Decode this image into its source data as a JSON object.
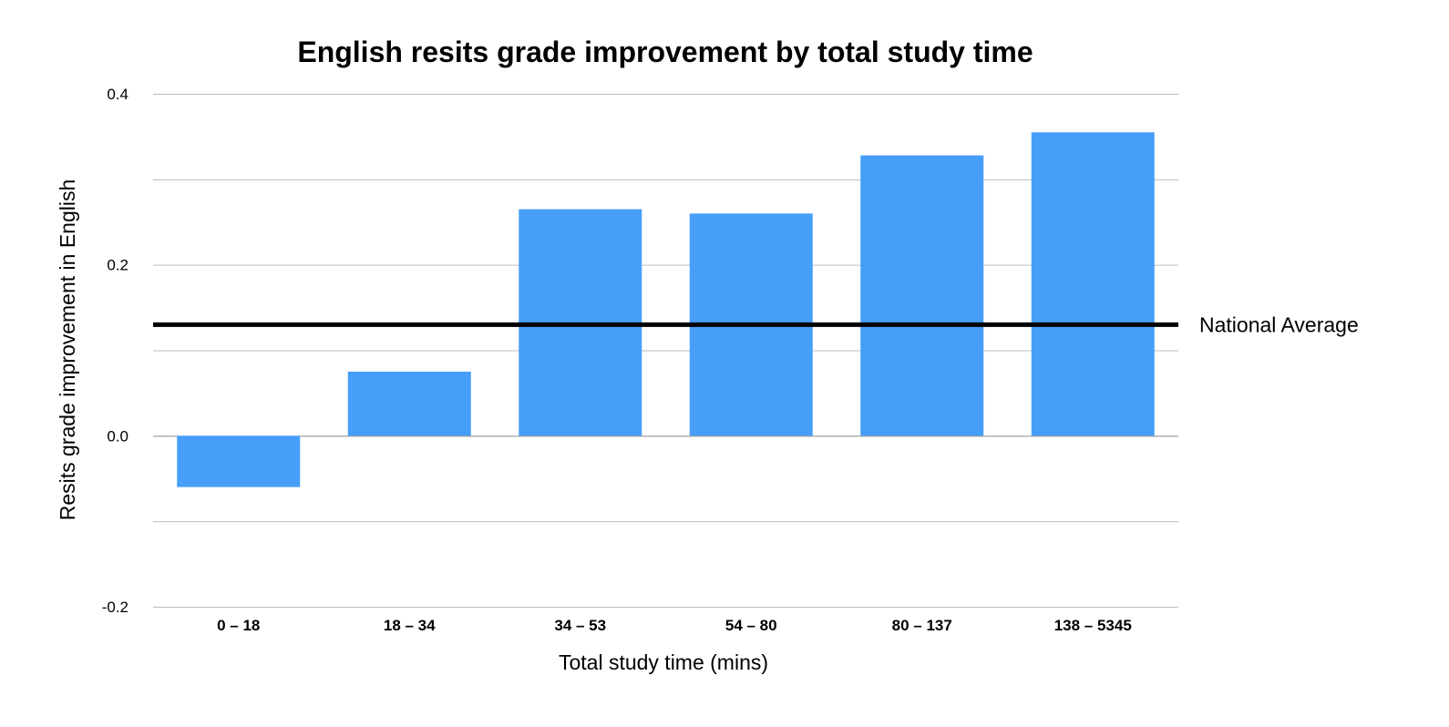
{
  "chart_data": {
    "type": "bar",
    "title": "English resits grade improvement by total study time",
    "xlabel": "Total study time (mins)",
    "ylabel": "Resits grade improvement in English",
    "categories": [
      "0 – 18",
      "18 – 34",
      "34 – 53",
      "54 – 80",
      "80 – 137",
      "138 – 5345"
    ],
    "values": [
      -0.06,
      0.075,
      0.265,
      0.26,
      0.328,
      0.355
    ],
    "ylim": [
      -0.2,
      0.4
    ],
    "y_ticks": [
      -0.2,
      0.0,
      0.2,
      0.4
    ],
    "y_tick_labels": [
      "-0.2",
      "0.0",
      "0.2",
      "0.4"
    ],
    "grid_step": 0.1,
    "grid": true,
    "legend": "none",
    "reference_line": {
      "label": "National Average",
      "value": 0.13,
      "color": "#000000"
    },
    "bar_color": "#479ef8"
  }
}
